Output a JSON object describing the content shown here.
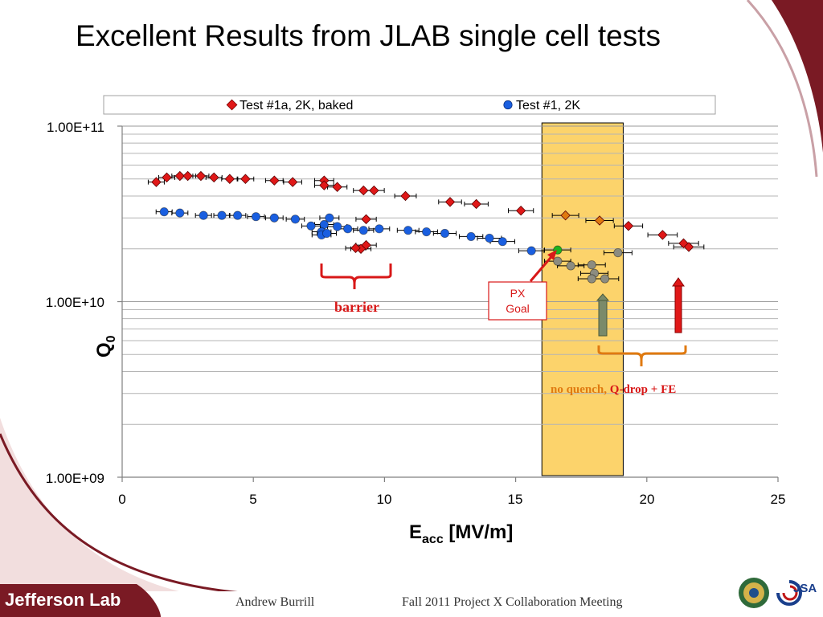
{
  "slide": {
    "title": "Excellent Results from JLAB single cell tests",
    "footer_author": "Andrew Burrill",
    "footer_meeting": "Fall 2011 Project X Collaboration Meeting",
    "logo_text": "Jefferson Lab",
    "jsa_text": "JSA"
  },
  "chart_data": {
    "type": "scatter",
    "xlabel": "E",
    "xlabel_sub": "acc",
    "xlabel_unit": " [MV/m]",
    "ylabel": "Q",
    "ylabel_sub": "0",
    "xlim": [
      0,
      25
    ],
    "ylim": [
      1000000000.0,
      100000000000.0
    ],
    "yscale": "log",
    "x_ticks": [
      "0",
      "5",
      "10",
      "15",
      "20",
      "25"
    ],
    "y_ticks": [
      "1.00E+09",
      "1.00E+10",
      "1.00E+11"
    ],
    "grid": "horizontal minor lines",
    "legend_position": "top",
    "legend": [
      "Test #1a, 2K, baked",
      "Test #1, 2K"
    ],
    "series": [
      {
        "name": "Test #1a, 2K, baked",
        "marker": "diamond",
        "color": "#e01818",
        "points": [
          [
            1.3,
            48000000000.0
          ],
          [
            1.7,
            51000000000.0
          ],
          [
            2.2,
            52000000000.0
          ],
          [
            2.5,
            52000000000.0
          ],
          [
            3.0,
            52000000000.0
          ],
          [
            3.5,
            51000000000.0
          ],
          [
            4.1,
            50000000000.0
          ],
          [
            4.7,
            50000000000.0
          ],
          [
            5.8,
            49000000000.0
          ],
          [
            6.5,
            48000000000.0
          ],
          [
            7.7,
            49000000000.0
          ],
          [
            7.7,
            46000000000.0
          ],
          [
            8.2,
            45000000000.0
          ],
          [
            9.2,
            43000000000.0
          ],
          [
            9.6,
            43000000000.0
          ],
          [
            10.8,
            40000000000.0
          ],
          [
            12.5,
            37000000000.0
          ],
          [
            13.5,
            36000000000.0
          ],
          [
            15.2,
            33000000000.0
          ],
          [
            19.3,
            27000000000.0
          ],
          [
            20.6,
            24000000000.0
          ],
          [
            21.4,
            21500000000.0
          ],
          [
            21.6,
            20500000000.0
          ],
          [
            9.3,
            29500000000.0
          ],
          [
            9.3,
            21000000000.0
          ],
          [
            9.1,
            20000000000.0
          ],
          [
            8.9,
            20200000000.0
          ]
        ]
      },
      {
        "name": "Test #1, 2K",
        "marker": "circle",
        "color": "#1a5fe0",
        "points": [
          [
            1.6,
            32500000000.0
          ],
          [
            2.2,
            32000000000.0
          ],
          [
            3.1,
            31000000000.0
          ],
          [
            3.8,
            31000000000.0
          ],
          [
            4.4,
            31000000000.0
          ],
          [
            5.1,
            30500000000.0
          ],
          [
            5.8,
            30000000000.0
          ],
          [
            6.6,
            29500000000.0
          ],
          [
            7.2,
            27000000000.0
          ],
          [
            7.7,
            27500000000.0
          ],
          [
            7.9,
            30000000000.0
          ],
          [
            8.2,
            26800000000.0
          ],
          [
            8.6,
            26000000000.0
          ],
          [
            9.2,
            25500000000.0
          ],
          [
            9.8,
            26000000000.0
          ],
          [
            10.9,
            25500000000.0
          ],
          [
            11.6,
            25000000000.0
          ],
          [
            12.3,
            24500000000.0
          ],
          [
            13.3,
            23500000000.0
          ],
          [
            14.0,
            23000000000.0
          ],
          [
            14.5,
            22000000000.0
          ],
          [
            15.6,
            19500000000.0
          ],
          [
            7.6,
            25000000000.0
          ],
          [
            7.6,
            24000000000.0
          ],
          [
            7.8,
            24500000000.0
          ]
        ]
      },
      {
        "name": "",
        "marker": "diamond",
        "color": "#e07a10",
        "points": [
          [
            16.9,
            31000000000.0
          ],
          [
            18.2,
            29000000000.0
          ]
        ]
      },
      {
        "name": "",
        "marker": "circle",
        "color": "#8c8c80",
        "points": [
          [
            16.6,
            17000000000.0
          ],
          [
            17.1,
            16000000000.0
          ],
          [
            17.9,
            16200000000.0
          ],
          [
            18.0,
            14500000000.0
          ],
          [
            18.4,
            13500000000.0
          ],
          [
            17.9,
            13500000000.0
          ],
          [
            18.9,
            19000000000.0
          ]
        ]
      },
      {
        "name": "",
        "marker": "circle",
        "color": "#1fb21f",
        "points": [
          [
            16.6,
            19700000000.0
          ]
        ]
      }
    ],
    "highlight_band": {
      "x_from": 16.0,
      "x_to": 19.1,
      "color": "#fcd36b"
    },
    "annotations": {
      "barrier": "barrier",
      "px_goal_line1": "PX",
      "px_goal_line2": "Goal",
      "no_quench_prefix": "no quench,",
      "no_quench_suffix": " Q-drop + FE"
    },
    "colors": {
      "red_annotation": "#d81818",
      "orange_annotation": "#e07a10",
      "gray_arrow": "#7a8a6a"
    }
  }
}
